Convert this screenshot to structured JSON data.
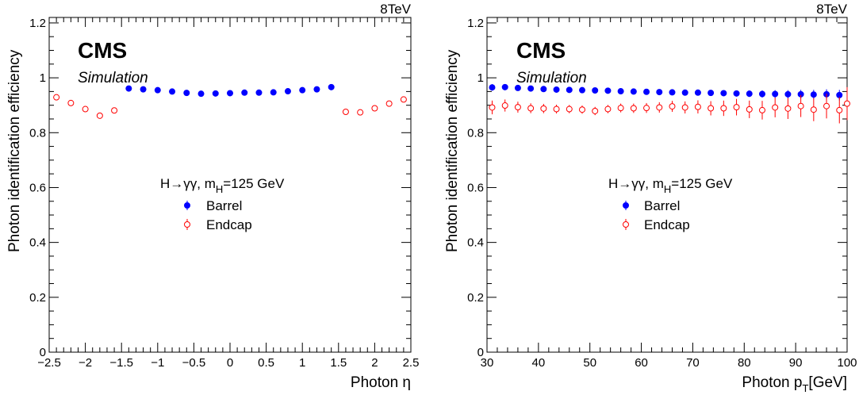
{
  "chart_data": [
    {
      "type": "scatter",
      "energy_label": "8TeV",
      "experiment": "CMS",
      "subtitle": "Simulation",
      "xlabel": "Photon η",
      "ylabel": "Photon identification efficiency",
      "xlim": [
        -2.5,
        2.5
      ],
      "ylim": [
        0,
        1.22
      ],
      "xticks": [
        "−2.5",
        "−2",
        "−1.5",
        "−1",
        "−0.5",
        "0",
        "0.5",
        "1",
        "1.5",
        "2",
        "2.5"
      ],
      "yticks": [
        "0",
        "0.2",
        "0.4",
        "0.6",
        "0.8",
        "1",
        "1.2"
      ],
      "legend_header": "H→γγ, m",
      "legend_header_sub": "H",
      "legend_header_tail": "=125 GeV",
      "series": [
        {
          "name": "Barrel",
          "color": "#0000ff",
          "marker": "filled-circle",
          "x": [
            -1.4,
            -1.2,
            -1.0,
            -0.8,
            -0.6,
            -0.4,
            -0.2,
            0.0,
            0.2,
            0.4,
            0.6,
            0.8,
            1.0,
            1.2,
            1.4
          ],
          "y": [
            0.961,
            0.958,
            0.955,
            0.95,
            0.945,
            0.942,
            0.943,
            0.944,
            0.946,
            0.946,
            0.947,
            0.951,
            0.955,
            0.958,
            0.966
          ],
          "err": [
            0.004,
            0.004,
            0.004,
            0.004,
            0.004,
            0.004,
            0.004,
            0.004,
            0.004,
            0.004,
            0.004,
            0.004,
            0.004,
            0.004,
            0.004
          ]
        },
        {
          "name": "Endcap",
          "color": "#ff0000",
          "marker": "open-circle",
          "x": [
            -2.4,
            -2.2,
            -2.0,
            -1.8,
            -1.6,
            1.6,
            1.8,
            2.0,
            2.2,
            2.4
          ],
          "y": [
            0.929,
            0.908,
            0.886,
            0.862,
            0.881,
            0.876,
            0.874,
            0.889,
            0.906,
            0.921
          ],
          "err": [
            0.006,
            0.006,
            0.006,
            0.006,
            0.006,
            0.006,
            0.006,
            0.006,
            0.006,
            0.006
          ]
        }
      ]
    },
    {
      "type": "scatter",
      "energy_label": "8TeV",
      "experiment": "CMS",
      "subtitle": "Simulation",
      "xlabel": "Photon p",
      "xlabel_sub": "T",
      "xlabel_tail": "[GeV]",
      "ylabel": "Photon identification efficiency",
      "xlim": [
        30,
        100
      ],
      "ylim": [
        0,
        1.22
      ],
      "xticks": [
        "30",
        "40",
        "50",
        "60",
        "70",
        "80",
        "90",
        "100"
      ],
      "yticks": [
        "0",
        "0.2",
        "0.4",
        "0.6",
        "0.8",
        "1",
        "1.2"
      ],
      "legend_header": "H→γγ, m",
      "legend_header_sub": "H",
      "legend_header_tail": "=125 GeV",
      "series": [
        {
          "name": "Barrel",
          "color": "#0000ff",
          "marker": "filled-circle",
          "x": [
            31,
            33.5,
            36,
            38.5,
            41,
            43.5,
            46,
            48.5,
            51,
            53.5,
            56,
            58.5,
            61,
            63.5,
            66,
            68.5,
            71,
            73.5,
            76,
            78.5,
            81,
            83.5,
            86,
            88.5,
            91,
            93.5,
            96,
            98.5
          ],
          "y": [
            0.965,
            0.966,
            0.963,
            0.961,
            0.959,
            0.957,
            0.956,
            0.955,
            0.954,
            0.953,
            0.951,
            0.95,
            0.949,
            0.948,
            0.947,
            0.946,
            0.946,
            0.945,
            0.944,
            0.943,
            0.942,
            0.941,
            0.941,
            0.94,
            0.94,
            0.939,
            0.94,
            0.937
          ],
          "err": [
            0.012,
            0.01,
            0.008,
            0.007,
            0.006,
            0.006,
            0.006,
            0.006,
            0.006,
            0.006,
            0.006,
            0.006,
            0.006,
            0.007,
            0.007,
            0.008,
            0.008,
            0.009,
            0.01,
            0.011,
            0.012,
            0.013,
            0.014,
            0.015,
            0.016,
            0.017,
            0.018,
            0.019
          ]
        },
        {
          "name": "Endcap",
          "color": "#ff0000",
          "marker": "open-circle",
          "x": [
            31,
            33.5,
            36,
            38.5,
            41,
            43.5,
            46,
            48.5,
            51,
            53.5,
            56,
            58.5,
            61,
            63.5,
            66,
            68.5,
            71,
            73.5,
            76,
            78.5,
            81,
            83.5,
            86,
            88.5,
            91,
            93.5,
            96,
            98.5,
            100
          ],
          "y": [
            0.892,
            0.899,
            0.893,
            0.889,
            0.888,
            0.886,
            0.886,
            0.884,
            0.879,
            0.886,
            0.89,
            0.889,
            0.89,
            0.892,
            0.896,
            0.892,
            0.894,
            0.889,
            0.889,
            0.893,
            0.885,
            0.882,
            0.892,
            0.888,
            0.897,
            0.884,
            0.897,
            0.882,
            0.906
          ],
          "err": [
            0.025,
            0.022,
            0.02,
            0.018,
            0.017,
            0.016,
            0.015,
            0.015,
            0.015,
            0.015,
            0.016,
            0.017,
            0.018,
            0.019,
            0.02,
            0.022,
            0.024,
            0.026,
            0.028,
            0.03,
            0.032,
            0.034,
            0.036,
            0.038,
            0.04,
            0.042,
            0.045,
            0.048,
            0.06
          ]
        }
      ]
    }
  ]
}
